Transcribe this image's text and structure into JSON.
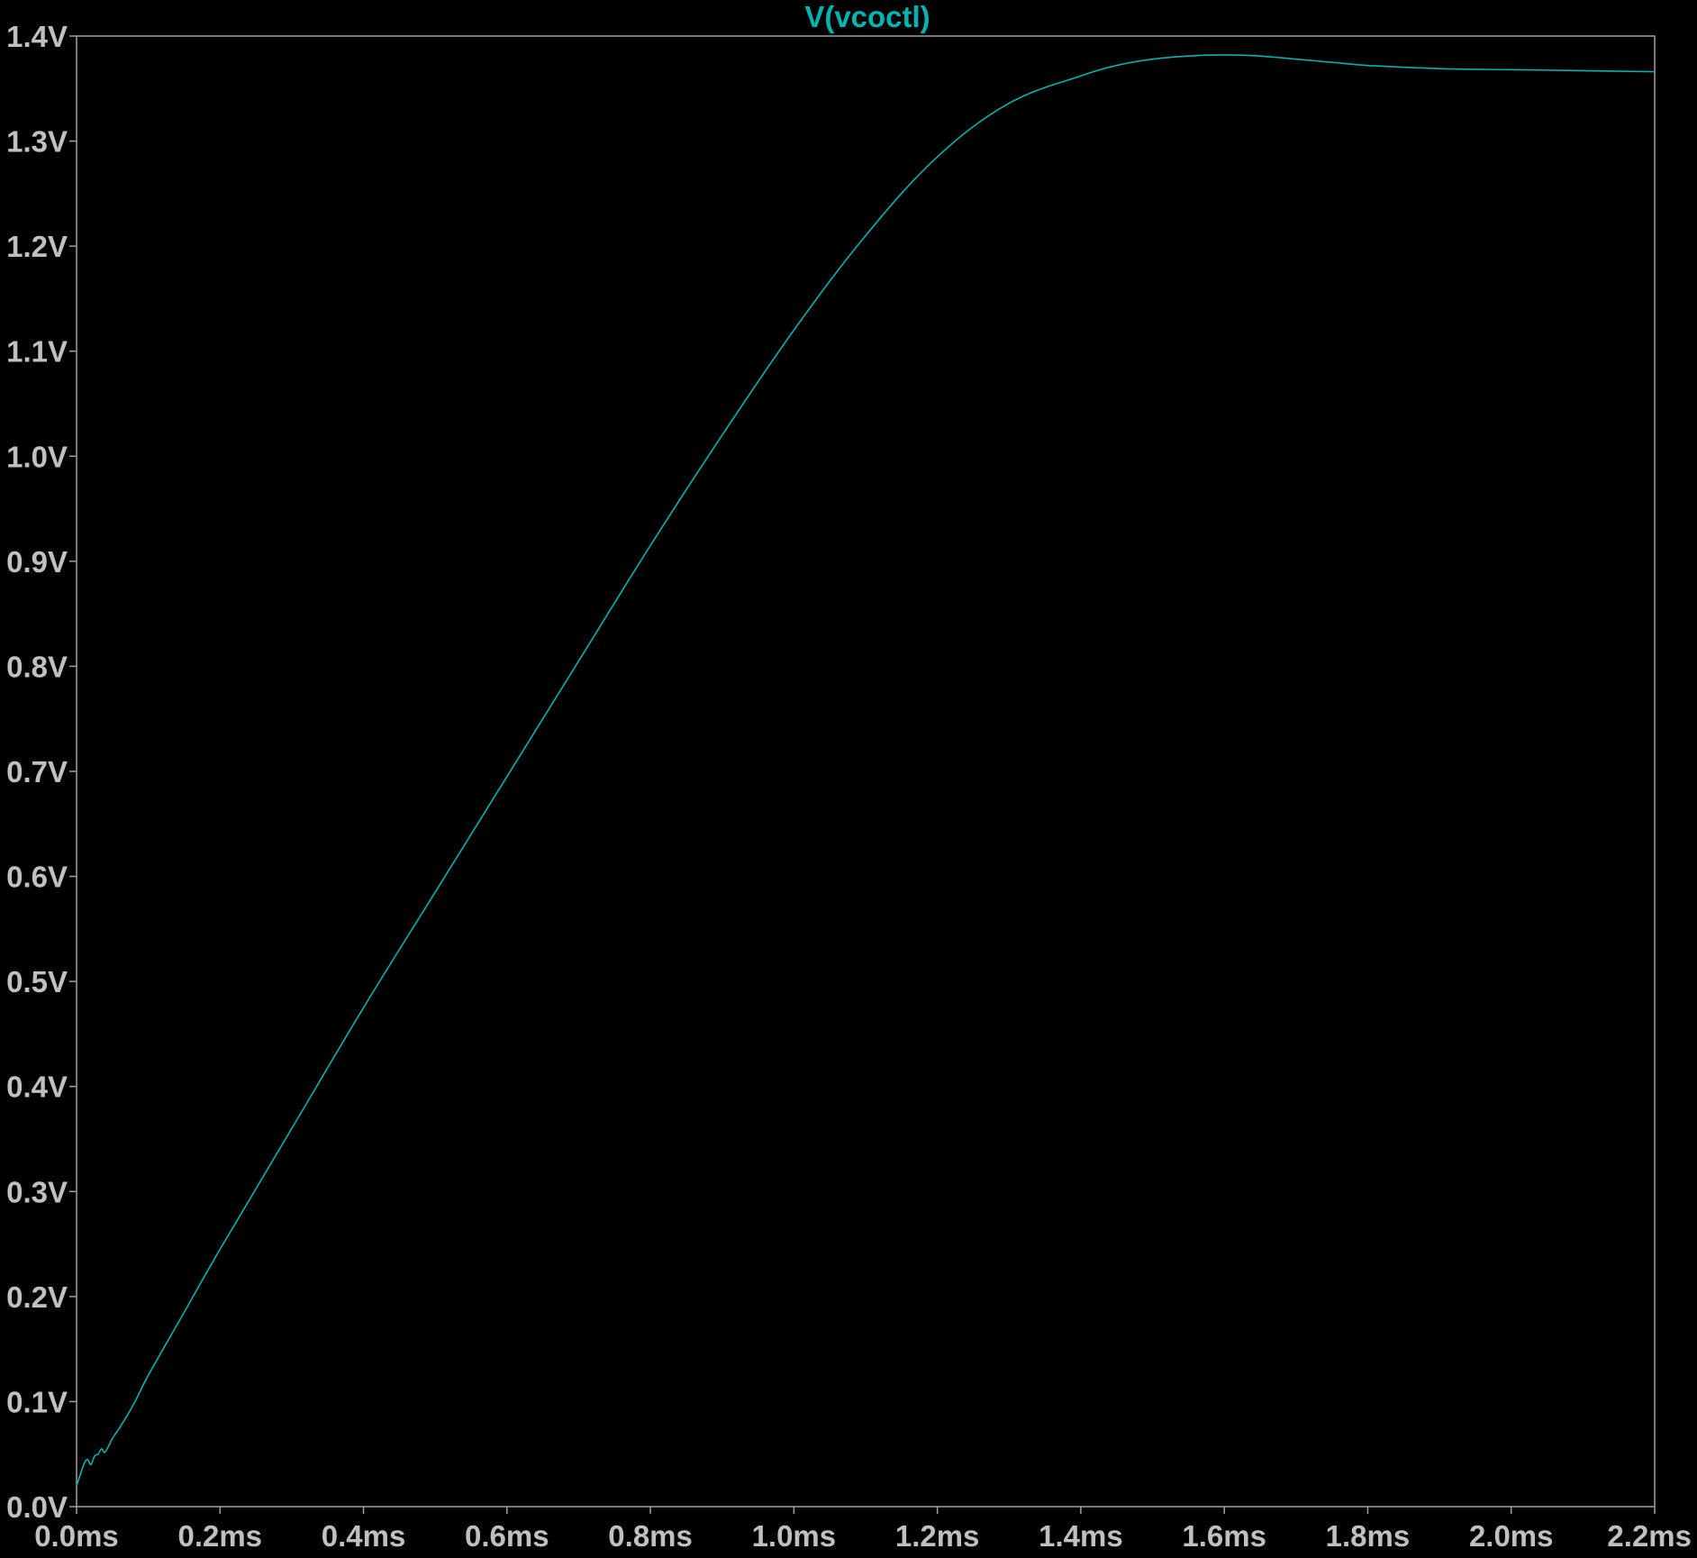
{
  "chart_data": {
    "type": "line",
    "title": "V(vcoctl)",
    "xlabel": "",
    "ylabel": "",
    "xlim": [
      0.0,
      2.2
    ],
    "ylim": [
      0.0,
      1.4
    ],
    "x_ticks": [
      "0.0ms",
      "0.2ms",
      "0.4ms",
      "0.6ms",
      "0.8ms",
      "1.0ms",
      "1.2ms",
      "1.4ms",
      "1.6ms",
      "1.8ms",
      "2.0ms",
      "2.2ms"
    ],
    "x_tick_values": [
      0.0,
      0.2,
      0.4,
      0.6,
      0.8,
      1.0,
      1.2,
      1.4,
      1.6,
      1.8,
      2.0,
      2.2
    ],
    "y_ticks": [
      "0.0V",
      "0.1V",
      "0.2V",
      "0.3V",
      "0.4V",
      "0.5V",
      "0.6V",
      "0.7V",
      "0.8V",
      "0.9V",
      "1.0V",
      "1.1V",
      "1.2V",
      "1.3V",
      "1.4V"
    ],
    "y_tick_values": [
      0.0,
      0.1,
      0.2,
      0.3,
      0.4,
      0.5,
      0.6,
      0.7,
      0.8,
      0.9,
      1.0,
      1.1,
      1.2,
      1.3,
      1.4
    ],
    "grid": false,
    "series": [
      {
        "name": "V(vcoctl)",
        "color": "#00b4b4",
        "x": [
          0.0,
          0.005,
          0.01,
          0.015,
          0.02,
          0.025,
          0.03,
          0.035,
          0.04,
          0.05,
          0.06,
          0.08,
          0.1,
          0.15,
          0.2,
          0.3,
          0.4,
          0.5,
          0.6,
          0.7,
          0.8,
          0.9,
          1.0,
          1.1,
          1.2,
          1.3,
          1.4,
          1.45,
          1.5,
          1.55,
          1.6,
          1.65,
          1.7,
          1.75,
          1.8,
          1.9,
          2.0,
          2.1,
          2.2
        ],
        "y": [
          0.02,
          0.03,
          0.04,
          0.045,
          0.04,
          0.048,
          0.05,
          0.055,
          0.052,
          0.065,
          0.075,
          0.098,
          0.125,
          0.185,
          0.245,
          0.36,
          0.475,
          0.585,
          0.695,
          0.805,
          0.915,
          1.02,
          1.12,
          1.21,
          1.285,
          1.336,
          1.362,
          1.372,
          1.378,
          1.381,
          1.382,
          1.381,
          1.378,
          1.375,
          1.372,
          1.369,
          1.368,
          1.367,
          1.366
        ]
      }
    ]
  },
  "colors": {
    "background": "#000000",
    "frame": "#a0a0a0",
    "tick_text": "#c0c0c0",
    "trace": "#00b4b4"
  }
}
